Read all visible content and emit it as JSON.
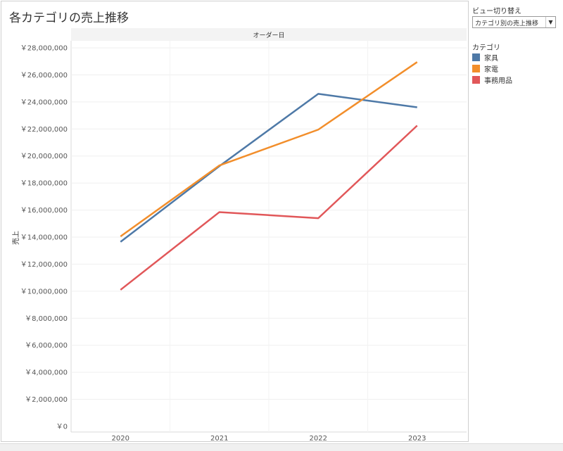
{
  "title": "各カテゴリの売上推移",
  "parameter": {
    "title": "ビュー切り替え",
    "selected": "カテゴリ別の売上推移"
  },
  "legend": {
    "title": "カテゴリ"
  },
  "colors": {
    "家具": "#4e79a7",
    "家電": "#f28e2b",
    "事務用品": "#e15759"
  },
  "chart_data": {
    "type": "line",
    "header": "オーダー日",
    "xlabel": "",
    "ylabel": "売上",
    "categories": [
      "2020",
      "2021",
      "2022",
      "2023"
    ],
    "ylim": [
      0,
      28000000
    ],
    "yticks": [
      "￥28,000,000",
      "￥26,000,000",
      "￥24,000,000",
      "￥22,000,000",
      "￥20,000,000",
      "￥18,000,000",
      "￥16,000,000",
      "￥14,000,000",
      "￥12,000,000",
      "￥10,000,000",
      "￥8,000,000",
      "￥6,000,000",
      "￥4,000,000",
      "￥2,000,000",
      "￥0"
    ],
    "grid": true,
    "legend_position": "right",
    "series": [
      {
        "name": "家具",
        "values": [
          13650000,
          19250000,
          24600000,
          23600000
        ]
      },
      {
        "name": "家電",
        "values": [
          14050000,
          19300000,
          21950000,
          26950000
        ]
      },
      {
        "name": "事務用品",
        "values": [
          10100000,
          15850000,
          15400000,
          22250000
        ]
      }
    ]
  }
}
